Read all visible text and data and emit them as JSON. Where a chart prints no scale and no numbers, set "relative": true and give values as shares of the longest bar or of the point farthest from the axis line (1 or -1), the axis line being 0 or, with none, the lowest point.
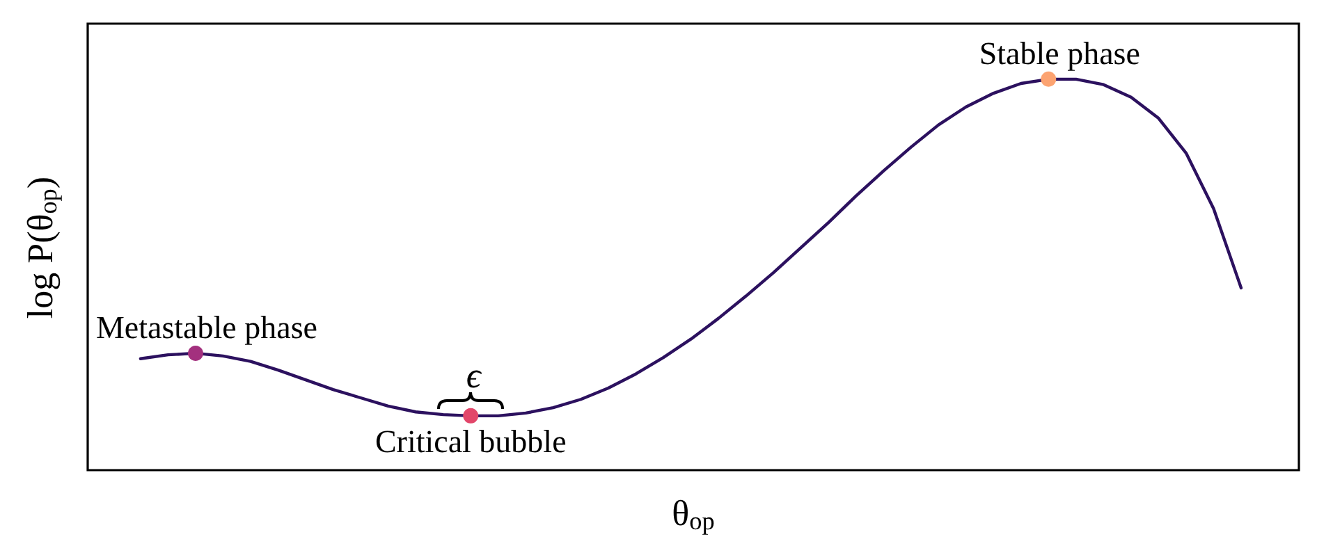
{
  "chart_data": {
    "type": "line",
    "relative": true,
    "xlabel": "θ$_{op}$",
    "ylabel": "log P(θ$_{op}$)",
    "grid": false,
    "categories": [
      null,
      null,
      null,
      null,
      null,
      null,
      null,
      null,
      null,
      null,
      null,
      null,
      null,
      null,
      null,
      null,
      null,
      null,
      null,
      null,
      null,
      null,
      null,
      null,
      null,
      null,
      null,
      null,
      null,
      null,
      null,
      null,
      null,
      null,
      null,
      null,
      null,
      null,
      null,
      null,
      null
    ],
    "series": [
      {
        "color": "#2c115f",
        "marker": "none",
        "values": [
          0.285,
          0.295,
          0.299,
          0.292,
          0.278,
          0.256,
          0.231,
          0.206,
          0.185,
          0.164,
          0.149,
          0.142,
          0.139,
          0.139,
          0.146,
          0.16,
          0.181,
          0.21,
          0.246,
          0.288,
          0.335,
          0.388,
          0.445,
          0.505,
          0.569,
          0.633,
          0.701,
          0.765,
          0.826,
          0.883,
          0.929,
          0.964,
          0.989,
          1.0,
          1.0,
          0.986,
          0.954,
          0.9,
          0.811,
          0.669,
          0.466
        ],
        "colors": [
          null,
          null,
          "#a3307e",
          null,
          null,
          null,
          null,
          null,
          null,
          null,
          null,
          null,
          "#e2466a",
          null,
          null,
          null,
          null,
          null,
          null,
          null,
          null,
          null,
          null,
          null,
          null,
          null,
          null,
          null,
          null,
          null,
          null,
          null,
          null,
          "#fca371",
          null,
          null,
          null,
          null,
          null,
          null,
          null
        ]
      }
    ],
    "annotations": [
      {
        "text": "Metastable phase",
        "y": 0.299
      },
      {
        "text": "Critical bubble",
        "y": 0.139
      },
      {
        "text": "Stable phase",
        "y": 1.0
      },
      "ϵ"
    ]
  }
}
